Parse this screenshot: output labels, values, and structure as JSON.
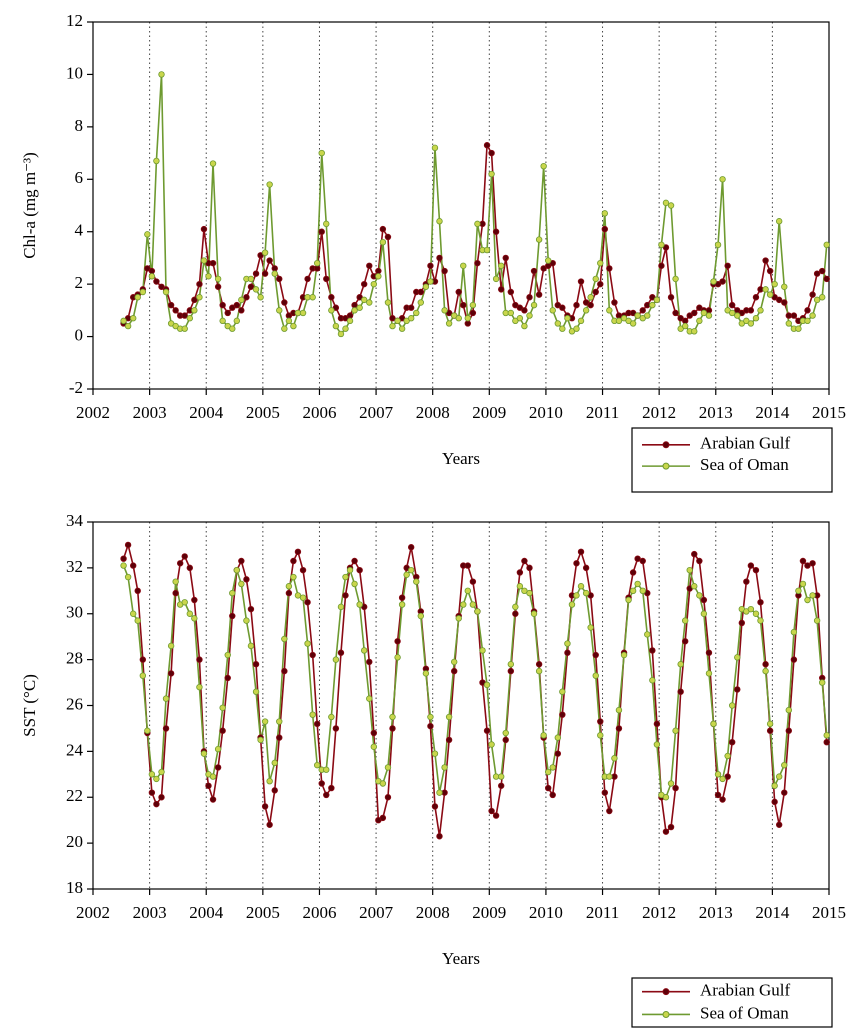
{
  "chart_data": [
    {
      "type": "line",
      "y_label": "Chl-a (mg m⁻³)",
      "x_label": "Years",
      "legend": "below-right",
      "grid": true,
      "xlim": [
        2002,
        2015
      ],
      "xticks": [
        2002,
        2003,
        2004,
        2005,
        2006,
        2007,
        2008,
        2009,
        2010,
        2011,
        2012,
        2013,
        2014,
        2015
      ],
      "ylim": [
        -2,
        12
      ],
      "yticks": [
        -2,
        0,
        2,
        4,
        6,
        8,
        10,
        12
      ],
      "x": [
        2002.54,
        2002.62,
        2002.71,
        2002.79,
        2002.88,
        2002.96,
        2003.04,
        2003.12,
        2003.21,
        2003.29,
        2003.38,
        2003.46,
        2003.54,
        2003.62,
        2003.71,
        2003.79,
        2003.88,
        2003.96,
        2004.04,
        2004.12,
        2004.21,
        2004.29,
        2004.38,
        2004.46,
        2004.54,
        2004.62,
        2004.71,
        2004.79,
        2004.88,
        2004.96,
        2005.04,
        2005.12,
        2005.21,
        2005.29,
        2005.38,
        2005.46,
        2005.54,
        2005.62,
        2005.71,
        2005.79,
        2005.88,
        2005.96,
        2006.04,
        2006.12,
        2006.21,
        2006.29,
        2006.38,
        2006.46,
        2006.54,
        2006.62,
        2006.71,
        2006.79,
        2006.88,
        2006.96,
        2007.04,
        2007.12,
        2007.21,
        2007.29,
        2007.38,
        2007.46,
        2007.54,
        2007.62,
        2007.71,
        2007.79,
        2007.88,
        2007.96,
        2008.04,
        2008.12,
        2008.21,
        2008.29,
        2008.38,
        2008.46,
        2008.54,
        2008.62,
        2008.71,
        2008.79,
        2008.88,
        2008.96,
        2009.04,
        2009.12,
        2009.21,
        2009.29,
        2009.38,
        2009.46,
        2009.54,
        2009.62,
        2009.71,
        2009.79,
        2009.88,
        2009.96,
        2010.04,
        2010.12,
        2010.21,
        2010.29,
        2010.38,
        2010.46,
        2010.54,
        2010.62,
        2010.71,
        2010.79,
        2010.88,
        2010.96,
        2011.04,
        2011.12,
        2011.21,
        2011.29,
        2011.38,
        2011.46,
        2011.54,
        2011.62,
        2011.71,
        2011.79,
        2011.88,
        2011.96,
        2012.04,
        2012.12,
        2012.21,
        2012.29,
        2012.38,
        2012.46,
        2012.54,
        2012.62,
        2012.71,
        2012.79,
        2012.88,
        2012.96,
        2013.04,
        2013.12,
        2013.21,
        2013.29,
        2013.38,
        2013.46,
        2013.54,
        2013.62,
        2013.71,
        2013.79,
        2013.88,
        2013.96,
        2014.04,
        2014.12,
        2014.21,
        2014.29,
        2014.38,
        2014.46,
        2014.54,
        2014.62,
        2014.71,
        2014.79,
        2014.88,
        2014.96
      ],
      "series": [
        {
          "name": "Arabian Gulf",
          "color": "#8b0a14",
          "marker_color": "#5e0008",
          "values": [
            0.5,
            0.7,
            1.5,
            1.6,
            1.8,
            2.6,
            2.5,
            2.1,
            1.9,
            1.8,
            1.2,
            1.0,
            0.8,
            0.8,
            1.0,
            1.4,
            2.0,
            4.1,
            2.8,
            2.8,
            1.9,
            1.2,
            0.9,
            1.1,
            1.2,
            1.0,
            1.5,
            1.9,
            2.4,
            3.1,
            2.4,
            2.9,
            2.6,
            2.2,
            1.3,
            0.8,
            0.9,
            0.9,
            1.5,
            2.2,
            2.6,
            2.6,
            4.0,
            2.2,
            1.5,
            1.1,
            0.7,
            0.7,
            0.8,
            1.2,
            1.5,
            2.0,
            2.7,
            2.3,
            2.5,
            4.1,
            3.8,
            0.7,
            0.6,
            0.7,
            1.1,
            1.1,
            1.7,
            1.7,
            2.0,
            2.7,
            2.1,
            3.0,
            2.5,
            0.9,
            0.8,
            1.7,
            1.2,
            0.5,
            0.9,
            2.8,
            4.3,
            7.3,
            7.0,
            4.0,
            1.8,
            3.0,
            1.7,
            1.2,
            1.1,
            1.0,
            1.5,
            2.5,
            1.6,
            2.6,
            2.7,
            2.8,
            1.2,
            1.1,
            0.8,
            0.7,
            1.2,
            2.1,
            1.3,
            1.2,
            1.7,
            2.0,
            4.1,
            2.6,
            1.3,
            0.8,
            0.8,
            0.9,
            0.9,
            0.8,
            1.0,
            1.2,
            1.5,
            1.4,
            2.7,
            3.4,
            1.5,
            0.9,
            0.7,
            0.6,
            0.8,
            0.9,
            1.1,
            1.0,
            1.0,
            2.0,
            2.0,
            2.1,
            2.7,
            1.2,
            1.0,
            0.9,
            1.0,
            1.0,
            1.5,
            1.8,
            2.9,
            2.5,
            1.5,
            1.4,
            1.3,
            0.8,
            0.8,
            0.6,
            0.7,
            1.0,
            1.6,
            2.4,
            2.5,
            2.2
          ]
        },
        {
          "name": "Sea of Oman",
          "color": "#6e9a30",
          "marker_color": "#c9d64c",
          "values": [
            0.6,
            0.4,
            0.7,
            1.5,
            1.7,
            3.9,
            2.3,
            6.7,
            10.0,
            1.7,
            0.5,
            0.4,
            0.3,
            0.3,
            0.7,
            1.0,
            1.5,
            2.9,
            2.3,
            6.6,
            2.2,
            0.6,
            0.4,
            0.3,
            0.6,
            1.4,
            2.2,
            2.2,
            1.8,
            1.5,
            3.2,
            5.8,
            2.4,
            1.0,
            0.3,
            0.6,
            0.4,
            0.9,
            0.9,
            1.5,
            1.5,
            2.8,
            7.0,
            4.3,
            1.0,
            0.4,
            0.1,
            0.3,
            0.6,
            1.0,
            1.1,
            1.4,
            1.3,
            2.0,
            2.3,
            3.6,
            1.3,
            0.4,
            0.6,
            0.3,
            0.6,
            0.7,
            0.9,
            1.3,
            1.9,
            2.1,
            7.2,
            4.4,
            1.0,
            0.5,
            0.8,
            0.7,
            2.7,
            0.7,
            1.2,
            4.3,
            3.3,
            3.3,
            6.2,
            2.2,
            2.7,
            0.9,
            0.9,
            0.6,
            0.7,
            0.4,
            0.8,
            1.2,
            3.7,
            6.5,
            2.9,
            1.0,
            0.5,
            0.3,
            0.7,
            0.2,
            0.3,
            0.6,
            1.0,
            1.5,
            2.2,
            2.8,
            4.7,
            1.0,
            0.6,
            0.6,
            0.7,
            0.6,
            0.5,
            0.8,
            0.7,
            0.8,
            1.2,
            1.4,
            3.5,
            5.1,
            5.0,
            2.2,
            0.3,
            0.4,
            0.2,
            0.2,
            0.6,
            0.9,
            0.8,
            2.1,
            3.5,
            6.0,
            1.0,
            0.9,
            0.8,
            0.5,
            0.6,
            0.5,
            0.7,
            1.0,
            1.8,
            1.6,
            2.0,
            4.4,
            1.9,
            0.5,
            0.3,
            0.3,
            0.6,
            0.6,
            0.8,
            1.4,
            1.5,
            3.5
          ]
        }
      ]
    },
    {
      "type": "line",
      "y_label": "SST (°C)",
      "x_label": "Years",
      "legend": "below-right",
      "grid": true,
      "xlim": [
        2002,
        2015
      ],
      "xticks": [
        2002,
        2003,
        2004,
        2005,
        2006,
        2007,
        2008,
        2009,
        2010,
        2011,
        2012,
        2013,
        2014,
        2015
      ],
      "ylim": [
        18,
        34
      ],
      "yticks": [
        18,
        20,
        22,
        24,
        26,
        28,
        30,
        32,
        34
      ],
      "x": [
        2002.54,
        2002.62,
        2002.71,
        2002.79,
        2002.88,
        2002.96,
        2003.04,
        2003.12,
        2003.21,
        2003.29,
        2003.38,
        2003.46,
        2003.54,
        2003.62,
        2003.71,
        2003.79,
        2003.88,
        2003.96,
        2004.04,
        2004.12,
        2004.21,
        2004.29,
        2004.38,
        2004.46,
        2004.54,
        2004.62,
        2004.71,
        2004.79,
        2004.88,
        2004.96,
        2005.04,
        2005.12,
        2005.21,
        2005.29,
        2005.38,
        2005.46,
        2005.54,
        2005.62,
        2005.71,
        2005.79,
        2005.88,
        2005.96,
        2006.04,
        2006.12,
        2006.21,
        2006.29,
        2006.38,
        2006.46,
        2006.54,
        2006.62,
        2006.71,
        2006.79,
        2006.88,
        2006.96,
        2007.04,
        2007.12,
        2007.21,
        2007.29,
        2007.38,
        2007.46,
        2007.54,
        2007.62,
        2007.71,
        2007.79,
        2007.88,
        2007.96,
        2008.04,
        2008.12,
        2008.21,
        2008.29,
        2008.38,
        2008.46,
        2008.54,
        2008.62,
        2008.71,
        2008.79,
        2008.88,
        2008.96,
        2009.04,
        2009.12,
        2009.21,
        2009.29,
        2009.38,
        2009.46,
        2009.54,
        2009.62,
        2009.71,
        2009.79,
        2009.88,
        2009.96,
        2010.04,
        2010.12,
        2010.21,
        2010.29,
        2010.38,
        2010.46,
        2010.54,
        2010.62,
        2010.71,
        2010.79,
        2010.88,
        2010.96,
        2011.04,
        2011.12,
        2011.21,
        2011.29,
        2011.38,
        2011.46,
        2011.54,
        2011.62,
        2011.71,
        2011.79,
        2011.88,
        2011.96,
        2012.04,
        2012.12,
        2012.21,
        2012.29,
        2012.38,
        2012.46,
        2012.54,
        2012.62,
        2012.71,
        2012.79,
        2012.88,
        2012.96,
        2013.04,
        2013.12,
        2013.21,
        2013.29,
        2013.38,
        2013.46,
        2013.54,
        2013.62,
        2013.71,
        2013.79,
        2013.88,
        2013.96,
        2014.04,
        2014.12,
        2014.21,
        2014.29,
        2014.38,
        2014.46,
        2014.54,
        2014.62,
        2014.71,
        2014.79,
        2014.88,
        2014.96
      ],
      "series": [
        {
          "name": "Arabian Gulf",
          "color": "#8b0a14",
          "marker_color": "#5e0008",
          "values": [
            32.4,
            33.0,
            32.1,
            31.0,
            28.0,
            24.8,
            22.2,
            21.7,
            22.0,
            25.0,
            27.4,
            30.9,
            32.2,
            32.5,
            32.0,
            30.6,
            28.0,
            24.0,
            22.5,
            21.9,
            23.3,
            24.9,
            27.2,
            29.9,
            31.9,
            32.3,
            31.5,
            30.2,
            27.8,
            24.6,
            21.6,
            20.8,
            22.3,
            24.6,
            27.5,
            30.9,
            32.3,
            32.7,
            31.9,
            30.5,
            28.2,
            25.2,
            22.6,
            22.1,
            22.4,
            25.0,
            28.3,
            30.8,
            32.0,
            32.3,
            31.9,
            30.3,
            27.9,
            24.8,
            21.0,
            21.1,
            22.0,
            25.0,
            28.8,
            30.7,
            32.0,
            32.9,
            31.6,
            30.1,
            27.6,
            25.1,
            21.6,
            20.3,
            22.2,
            24.5,
            27.5,
            29.9,
            32.1,
            32.1,
            31.4,
            30.1,
            27.0,
            24.9,
            21.4,
            21.2,
            22.5,
            24.5,
            27.5,
            30.0,
            31.8,
            32.3,
            32.0,
            30.1,
            27.8,
            24.6,
            22.4,
            22.1,
            23.9,
            25.6,
            28.3,
            30.8,
            32.2,
            32.7,
            32.0,
            30.8,
            28.2,
            25.3,
            22.2,
            21.4,
            22.9,
            25.0,
            28.3,
            30.7,
            31.8,
            32.4,
            32.3,
            30.9,
            28.4,
            25.2,
            22.0,
            20.5,
            20.7,
            22.4,
            26.6,
            28.8,
            31.1,
            32.6,
            32.3,
            30.6,
            28.3,
            25.2,
            22.1,
            21.9,
            22.9,
            24.4,
            26.7,
            29.6,
            31.4,
            32.1,
            31.9,
            30.5,
            27.8,
            24.9,
            21.8,
            20.8,
            22.2,
            24.9,
            28.0,
            30.8,
            32.3,
            32.1,
            32.2,
            30.8,
            27.2,
            24.4
          ]
        },
        {
          "name": "Sea of Oman",
          "color": "#6e9a30",
          "marker_color": "#c9d64c",
          "values": [
            32.1,
            31.6,
            30.0,
            29.7,
            27.3,
            24.9,
            23.0,
            22.8,
            23.1,
            26.3,
            28.6,
            31.4,
            30.4,
            30.5,
            30.0,
            29.8,
            26.8,
            23.9,
            23.0,
            22.9,
            24.1,
            25.9,
            28.2,
            30.9,
            31.9,
            31.3,
            29.7,
            28.6,
            26.6,
            24.5,
            25.3,
            22.7,
            23.5,
            25.3,
            28.9,
            31.2,
            31.6,
            30.8,
            30.7,
            28.7,
            25.6,
            23.4,
            23.2,
            23.2,
            25.5,
            28.0,
            30.3,
            31.6,
            31.9,
            31.3,
            30.4,
            28.4,
            26.3,
            24.2,
            22.7,
            22.6,
            23.3,
            25.5,
            28.1,
            30.4,
            31.7,
            31.9,
            31.4,
            29.9,
            27.4,
            25.5,
            23.9,
            22.2,
            23.3,
            25.5,
            27.9,
            29.8,
            30.4,
            31.0,
            30.4,
            30.1,
            28.4,
            26.9,
            24.3,
            22.9,
            22.9,
            24.8,
            27.8,
            30.3,
            31.2,
            31.0,
            30.9,
            30.0,
            27.5,
            24.7,
            23.1,
            23.3,
            24.6,
            26.6,
            28.7,
            30.4,
            30.8,
            31.2,
            30.9,
            29.4,
            27.3,
            24.7,
            22.9,
            22.9,
            23.7,
            25.8,
            28.2,
            30.6,
            31.0,
            31.3,
            31.0,
            29.1,
            27.1,
            24.3,
            22.1,
            22.0,
            22.6,
            24.9,
            27.8,
            29.7,
            31.9,
            31.2,
            30.8,
            30.0,
            27.4,
            25.2,
            23.0,
            22.8,
            23.8,
            26.0,
            28.1,
            30.2,
            30.1,
            30.2,
            30.0,
            29.7,
            27.5,
            25.2,
            22.5,
            22.9,
            23.4,
            25.8,
            29.2,
            31.0,
            31.3,
            30.6,
            30.8,
            29.7,
            27.0,
            24.7
          ]
        }
      ]
    }
  ]
}
